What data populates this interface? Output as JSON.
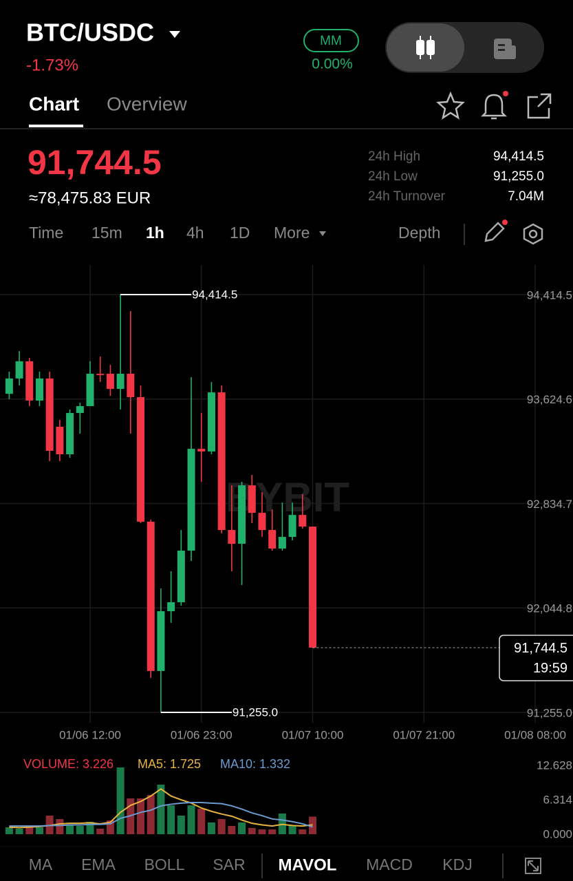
{
  "header": {
    "pair": "BTC/USDC",
    "change": "-1.73%",
    "badge": "MM",
    "badge_change": "0.00%"
  },
  "tabs": [
    "Chart",
    "Overview"
  ],
  "price": {
    "last": "91,744.5",
    "fiat": "≈78,475.83 EUR"
  },
  "stats": [
    {
      "label": "24h High",
      "value": "94,414.5"
    },
    {
      "label": "24h Low",
      "value": "91,255.0"
    },
    {
      "label": "24h Turnover",
      "value": "7.04M"
    }
  ],
  "timeframes": [
    "Time",
    "15m",
    "1h",
    "4h",
    "1D",
    "More"
  ],
  "depth": "Depth",
  "indicators": [
    "MA",
    "EMA",
    "BOLL",
    "SAR",
    "MAVOL",
    "MACD",
    "KDJ"
  ],
  "chart_data": [
    {
      "type": "candlestick",
      "x": [
        "01/06 04:00",
        "01/06 05:00",
        "01/06 06:00",
        "01/06 07:00",
        "01/06 08:00",
        "01/06 09:00",
        "01/06 10:00",
        "01/06 11:00",
        "01/06 12:00",
        "01/06 13:00",
        "01/06 14:00",
        "01/06 15:00",
        "01/06 16:00",
        "01/06 17:00",
        "01/06 18:00",
        "01/06 19:00",
        "01/06 20:00",
        "01/06 21:00",
        "01/06 22:00",
        "01/06 23:00",
        "01/07 00:00",
        "01/07 01:00",
        "01/07 02:00",
        "01/07 03:00",
        "01/07 04:00",
        "01/07 05:00",
        "01/07 06:00",
        "01/07 07:00",
        "01/07 08:00",
        "01/07 09:00",
        "01/07 10:00"
      ],
      "open": [
        93664,
        93780,
        93910,
        93613,
        93780,
        93415,
        93207,
        93519,
        93571,
        93816,
        93816,
        93701,
        93816,
        93639,
        92697,
        91568,
        92020,
        92088,
        92478,
        93248,
        93228,
        93675,
        92634,
        92530,
        92972,
        92764,
        92634,
        92494,
        92582,
        92748,
        92660
      ],
      "high": [
        93832,
        93988,
        93936,
        93832,
        93832,
        93467,
        93545,
        93597,
        93910,
        93946,
        93884,
        94414.5,
        94290,
        93727,
        92712,
        92192,
        92322,
        92634,
        93790,
        93519,
        93753,
        93727,
        92972,
        92999,
        93051,
        92920,
        92790,
        92842,
        92842,
        92905,
        92660
      ],
      "low": [
        93623,
        93727,
        93571,
        93571,
        93155,
        93155,
        93181,
        93363,
        93571,
        93754,
        93649,
        93545,
        93363,
        92686,
        91516,
        91255,
        91932,
        92062,
        92400,
        92999,
        93207,
        92608,
        92322,
        92218,
        92686,
        92582,
        92478,
        92478,
        92556,
        92645,
        91744.5
      ],
      "close": [
        93780,
        93910,
        93613,
        93780,
        93233,
        93207,
        93519,
        93571,
        93816,
        93806,
        93701,
        93816,
        93639,
        92697,
        91568,
        92020,
        92088,
        92478,
        93248,
        93228,
        93675,
        92634,
        92530,
        92972,
        92764,
        92634,
        92494,
        92582,
        92748,
        92660,
        91744.5
      ],
      "up_color": "#20b26c",
      "down_color": "#f23645",
      "ylim": [
        91176.9,
        94638.3
      ],
      "yticks": [
        {
          "value": 94414.5,
          "label": "94,414.5"
        },
        {
          "value": 93624.6,
          "label": "93,624.6"
        },
        {
          "value": 92834.7,
          "label": "92,834.7"
        },
        {
          "value": 92044.8,
          "label": "92,044.8"
        },
        {
          "value": 91255.0,
          "label": "91,255.0"
        }
      ],
      "xticks": [
        "01/06 12:00",
        "01/06 23:00",
        "01/07 10:00",
        "01/07 21:00",
        "01/08 08:00"
      ],
      "grid": true,
      "high_label": "94,414.5",
      "low_label": "91,255.0",
      "last_label": "91,744.5",
      "countdown": "19:59",
      "watermark": "BYBIT"
    },
    {
      "type": "bar",
      "series": [
        {
          "label": "VOLUME: 3.226",
          "color": "#f23645",
          "up_color": "#1a7a4a",
          "down_color": "#8e2a33",
          "values": [
            1.26,
            1.01,
            1.52,
            1.26,
            3.41,
            2.78,
            1.77,
            1.52,
            2.27,
            1.01,
            2.53,
            12.25,
            6.57,
            6.57,
            7.2,
            9.09,
            5.3,
            3.41,
            5.3,
            4.67,
            2.15,
            2.78,
            1.52,
            2.15,
            1.14,
            0.88,
            0.88,
            3.79,
            1.52,
            0.88,
            3.226
          ]
        },
        {
          "label": "MA5: 1.725",
          "color": "#e8b440",
          "values": [
            1.3,
            1.2,
            1.3,
            1.4,
            1.6,
            1.9,
            2.0,
            2.0,
            2.1,
            1.9,
            2.2,
            4.0,
            5.3,
            6.0,
            7.0,
            8.3,
            7.0,
            6.3,
            5.7,
            4.8,
            4.2,
            3.7,
            3.3,
            2.6,
            2.0,
            1.7,
            1.5,
            1.8,
            1.6,
            1.5,
            1.725
          ]
        },
        {
          "label": "MA10: 1.332",
          "color": "#6b9bd1",
          "values": [
            1.5,
            1.5,
            1.5,
            1.5,
            1.6,
            1.6,
            1.7,
            1.7,
            1.8,
            1.8,
            1.9,
            2.9,
            3.4,
            4.0,
            4.4,
            5.2,
            5.5,
            5.7,
            5.8,
            5.8,
            5.7,
            5.6,
            5.2,
            4.6,
            3.9,
            3.4,
            2.8,
            2.6,
            2.3,
            1.9,
            1.332
          ]
        }
      ],
      "ylim": [
        0,
        14.14
      ],
      "yticks": [
        12.628,
        6.314,
        {
          "value": 0,
          "label": "0.000"
        }
      ]
    }
  ]
}
